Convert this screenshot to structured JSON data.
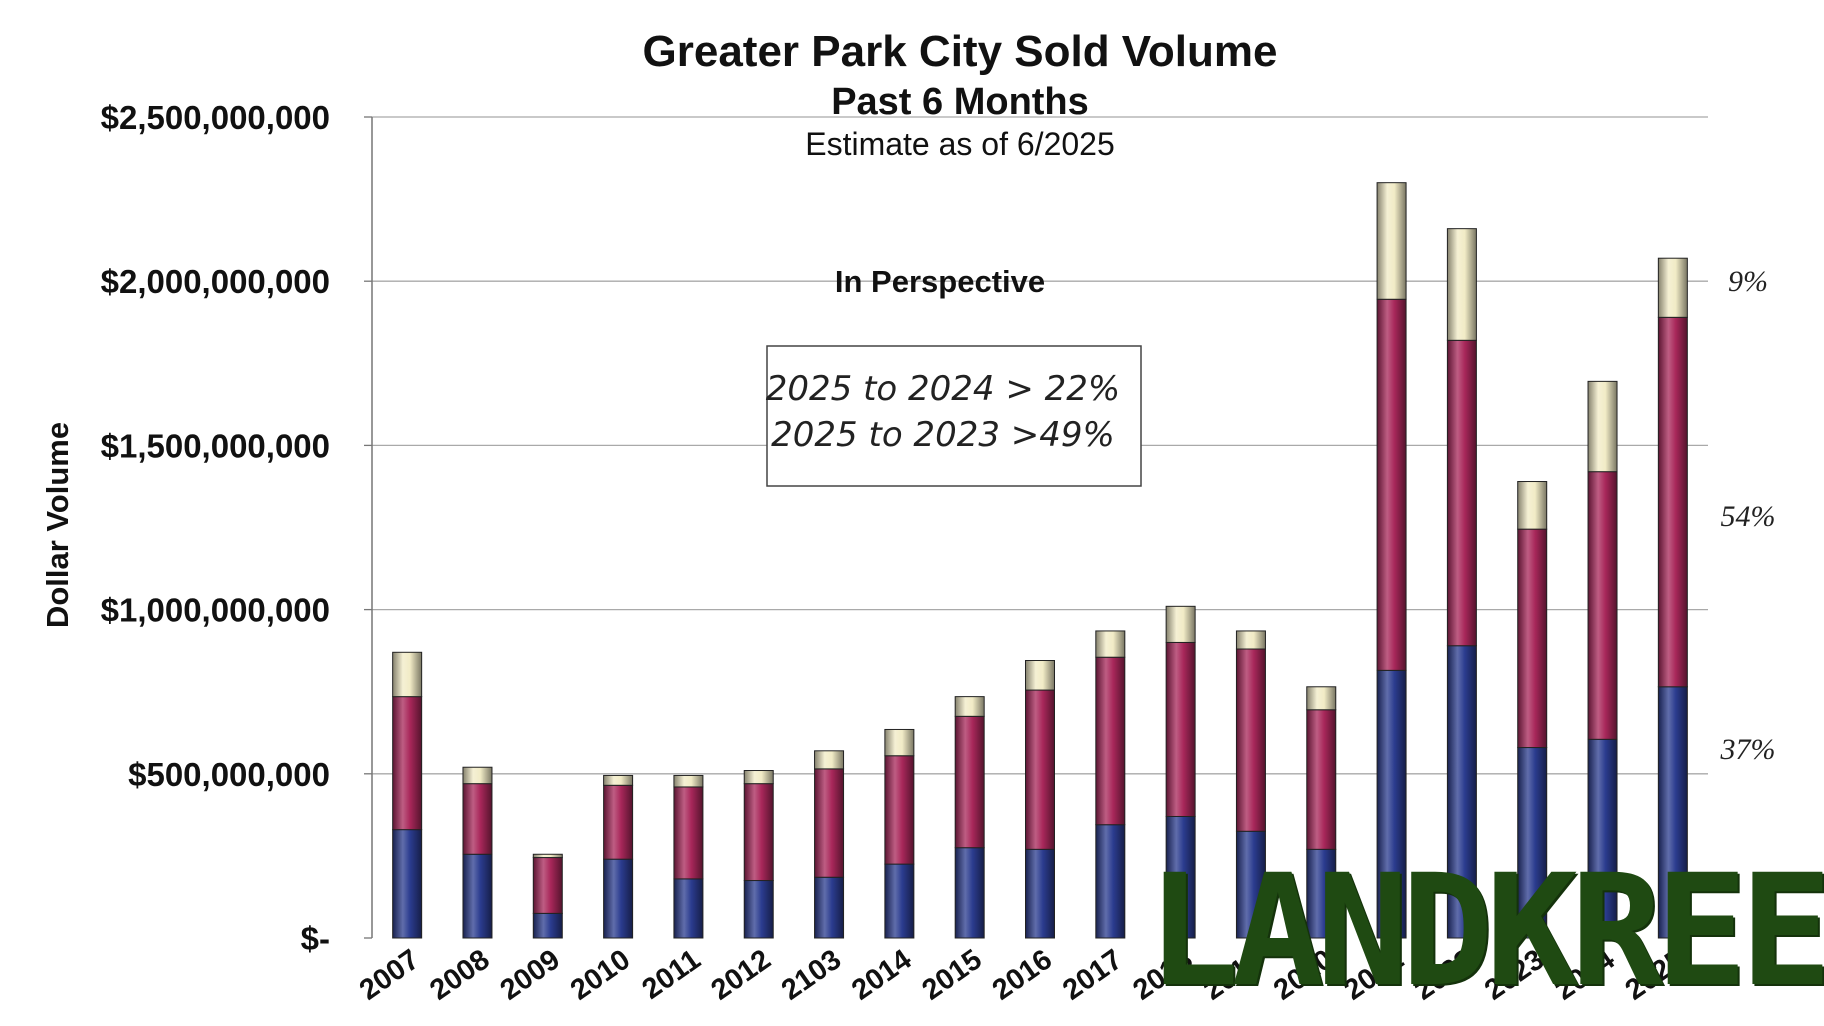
{
  "chart_data": {
    "type": "bar",
    "stacked": true,
    "title": "Greater Park City Sold Volume",
    "subtitle": "Past 6 Months",
    "note": "Estimate as of 6/2025",
    "ylabel": "Dollar Volume",
    "xlabel": "",
    "ylim": [
      0,
      2500000000
    ],
    "y_ticks": [
      "$-",
      "$500,000,000",
      "$1,000,000,000",
      "$1,500,000,000",
      "$2,000,000,000",
      "$2,500,000,000"
    ],
    "y_tick_values": [
      0,
      500000000,
      1000000000,
      1500000000,
      2000000000,
      2500000000
    ],
    "grid": true,
    "categories": [
      "2007",
      "2008",
      "2009",
      "2010",
      "2011",
      "2012",
      "2103",
      "2014",
      "2015",
      "2016",
      "2017",
      "2018",
      "2019",
      "2020",
      "2021",
      "2022",
      "2023",
      "2024",
      "2025"
    ],
    "series": [
      {
        "color": "#2b3c8f",
        "values": [
          330000000,
          255000000,
          75000000,
          240000000,
          180000000,
          175000000,
          185000000,
          225000000,
          275000000,
          270000000,
          345000000,
          370000000,
          325000000,
          270000000,
          815000000,
          890000000,
          580000000,
          605000000,
          765000000
        ]
      },
      {
        "color": "#a8275a",
        "values": [
          405000000,
          215000000,
          170000000,
          225000000,
          280000000,
          295000000,
          330000000,
          330000000,
          400000000,
          485000000,
          510000000,
          530000000,
          555000000,
          425000000,
          1130000000,
          930000000,
          665000000,
          815000000,
          1125000000
        ]
      },
      {
        "color": "#f1ebc6",
        "values": [
          135000000,
          50000000,
          10000000,
          30000000,
          35000000,
          40000000,
          55000000,
          80000000,
          60000000,
          90000000,
          80000000,
          110000000,
          55000000,
          70000000,
          355000000,
          340000000,
          145000000,
          275000000,
          180000000
        ]
      }
    ],
    "annotations": {
      "heading": "In Perspective",
      "box_lines": [
        "2025 to 2024 > 22%",
        "2025 to 2023 >49%"
      ],
      "right_percents": [
        "9%",
        "54%",
        "37%"
      ]
    }
  },
  "watermark": {
    "text": "LANDKREEK",
    "color": "#1f4a12"
  }
}
